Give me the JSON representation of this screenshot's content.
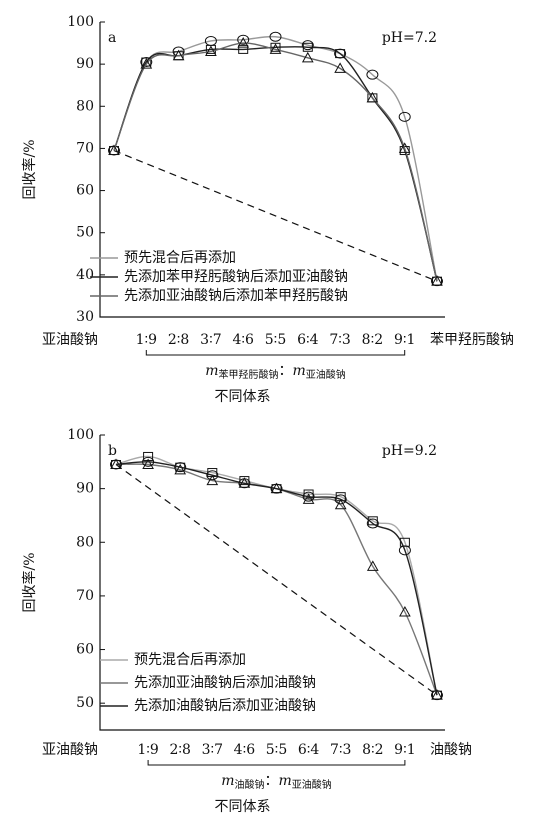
{
  "chart_data": [
    {
      "type": "line",
      "panel_label": "a",
      "annotation": "pH=7.2",
      "y_label": "回收率/%",
      "x_label": "不同体系",
      "ratio_label": {
        "numerator_symbol": "m",
        "numerator_sub": "苯甲羟肟酸钠",
        "separator": "：",
        "denominator_symbol": "m",
        "denominator_sub": "亚油酸钠"
      },
      "categories": [
        "亚油酸钠",
        "1∶9",
        "2∶8",
        "3∶7",
        "4∶6",
        "5∶5",
        "6∶4",
        "7∶3",
        "8∶2",
        "9∶1",
        "苯甲羟肟酸钠"
      ],
      "ylim": [
        30,
        100
      ],
      "yticks": [
        30,
        40,
        50,
        60,
        70,
        80,
        90,
        100
      ],
      "series": [
        {
          "name": "预先混合后再添加",
          "color": "#999999",
          "marker": "circle",
          "values": [
            69.5,
            90.5,
            93,
            95.5,
            95.8,
            96.5,
            94.5,
            92.5,
            87.5,
            77.5,
            38.5
          ]
        },
        {
          "name": "先添加苯甲羟肟酸钠后添加亚油酸钠",
          "color": "#222222",
          "marker": "square",
          "values": [
            69.5,
            90.5,
            92,
            93.5,
            93.5,
            94,
            94,
            92.5,
            82,
            69.5,
            38.5
          ]
        },
        {
          "name": "先添加亚油酸钠后添加苯甲羟肟酸钠",
          "color": "#666666",
          "marker": "triangle",
          "values": [
            69.5,
            90,
            92,
            93,
            95,
            93.5,
            91.5,
            89,
            82,
            70,
            38.5
          ]
        }
      ]
    },
    {
      "type": "line",
      "panel_label": "b",
      "annotation": "pH=9.2",
      "y_label": "回收率/%",
      "x_label": "不同体系",
      "ratio_label": {
        "numerator_symbol": "m",
        "numerator_sub": "油酸钠",
        "separator": "：",
        "denominator_symbol": "m",
        "denominator_sub": "亚油酸钠"
      },
      "categories": [
        "亚油酸钠",
        "1∶9",
        "2∶8",
        "3∶7",
        "4∶6",
        "5∶5",
        "6∶4",
        "7∶3",
        "8∶2",
        "9∶1",
        "油酸钠"
      ],
      "ylim": [
        45,
        100
      ],
      "yticks": [
        50,
        60,
        70,
        80,
        90,
        100
      ],
      "series": [
        {
          "name": "预先混合后再添加",
          "color": "#aaaaaa",
          "marker": "square",
          "values": [
            94.5,
            96,
            94,
            93,
            91.5,
            90,
            89,
            88.5,
            84,
            80,
            51.5
          ]
        },
        {
          "name": "先添加亚油酸钠后添加油酸钠",
          "color": "#777777",
          "marker": "triangle",
          "values": [
            94.5,
            94.5,
            93.5,
            91.5,
            91,
            90,
            88,
            87,
            75.5,
            67,
            51.5
          ]
        },
        {
          "name": "先添加油酸钠后添加亚油酸钠",
          "color": "#222222",
          "marker": "circle",
          "values": [
            94.5,
            95,
            94,
            92.5,
            91,
            90,
            88.5,
            88,
            83.5,
            78.5,
            51.5
          ]
        }
      ]
    }
  ]
}
